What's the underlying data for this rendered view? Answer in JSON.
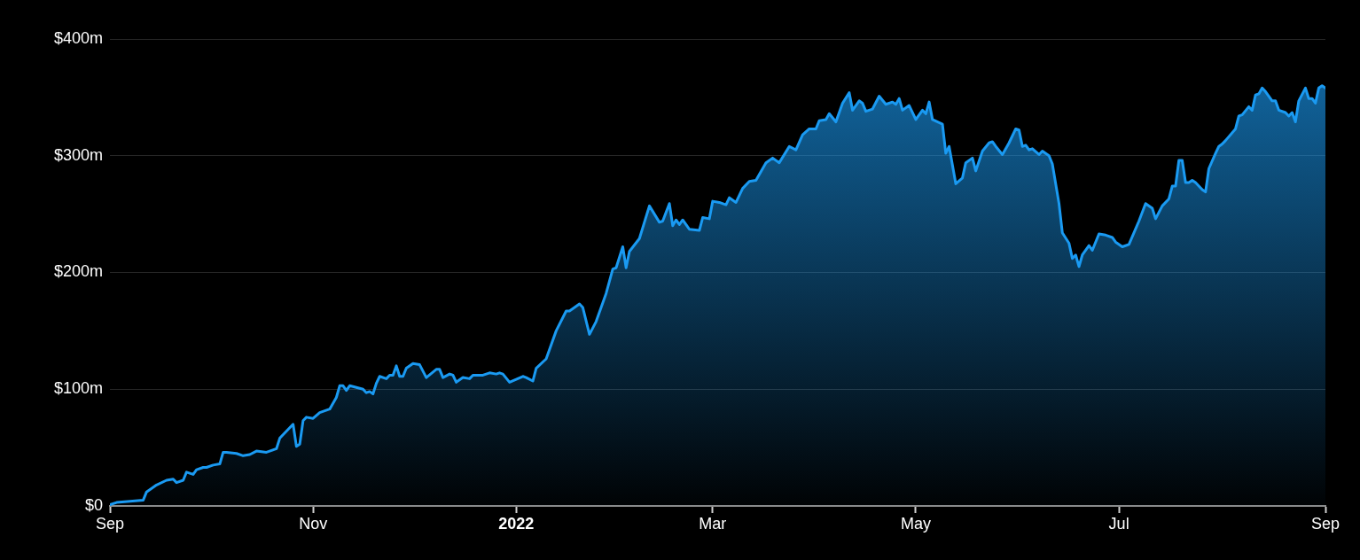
{
  "chart_data": {
    "type": "area",
    "x": [
      "2021-09-01",
      "2021-09-03",
      "2021-09-07",
      "2021-09-11",
      "2021-09-12",
      "2021-09-15",
      "2021-09-18",
      "2021-09-20",
      "2021-09-21",
      "2021-09-23",
      "2021-09-24",
      "2021-09-26",
      "2021-09-27",
      "2021-09-29",
      "2021-09-30",
      "2021-10-02",
      "2021-10-04",
      "2021-10-05",
      "2021-10-06",
      "2021-10-09",
      "2021-10-11",
      "2021-10-13",
      "2021-10-15",
      "2021-10-18",
      "2021-10-21",
      "2021-10-22",
      "2021-10-26",
      "2021-10-27",
      "2021-10-28",
      "2021-10-29",
      "2021-10-30",
      "2021-11-01",
      "2021-11-03",
      "2021-11-06",
      "2021-11-08",
      "2021-11-09",
      "2021-11-10",
      "2021-11-11",
      "2021-11-12",
      "2021-11-16",
      "2021-11-17",
      "2021-11-18",
      "2021-11-19",
      "2021-11-20",
      "2021-11-21",
      "2021-11-23",
      "2021-11-24",
      "2021-11-25",
      "2021-11-26",
      "2021-11-27",
      "2021-11-28",
      "2021-11-29",
      "2021-12-01",
      "2021-12-03",
      "2021-12-05",
      "2021-12-08",
      "2021-12-09",
      "2021-12-10",
      "2021-12-12",
      "2021-12-13",
      "2021-12-14",
      "2021-12-16",
      "2021-12-18",
      "2021-12-19",
      "2021-12-22",
      "2021-12-24",
      "2021-12-26",
      "2021-12-27",
      "2021-12-28",
      "2021-12-30",
      "2022-01-03",
      "2022-01-04",
      "2022-01-06",
      "2022-01-07",
      "2022-01-10",
      "2022-01-13",
      "2022-01-16",
      "2022-01-17",
      "2022-01-20",
      "2022-01-21",
      "2022-01-23",
      "2022-01-25",
      "2022-01-28",
      "2022-01-30",
      "2022-01-31",
      "2022-02-02",
      "2022-02-03",
      "2022-02-04",
      "2022-02-07",
      "2022-02-10",
      "2022-02-13",
      "2022-02-14",
      "2022-02-16",
      "2022-02-17",
      "2022-02-18",
      "2022-02-19",
      "2022-02-20",
      "2022-02-22",
      "2022-02-25",
      "2022-02-26",
      "2022-02-28",
      "2022-03-01",
      "2022-03-03",
      "2022-03-05",
      "2022-03-06",
      "2022-03-08",
      "2022-03-10",
      "2022-03-12",
      "2022-03-14",
      "2022-03-17",
      "2022-03-19",
      "2022-03-21",
      "2022-03-24",
      "2022-03-26",
      "2022-03-28",
      "2022-03-30",
      "2022-04-01",
      "2022-04-02",
      "2022-04-04",
      "2022-04-05",
      "2022-04-07",
      "2022-04-09",
      "2022-04-11",
      "2022-04-12",
      "2022-04-14",
      "2022-04-15",
      "2022-04-16",
      "2022-04-18",
      "2022-04-20",
      "2022-04-22",
      "2022-04-24",
      "2022-04-25",
      "2022-04-26",
      "2022-04-27",
      "2022-04-29",
      "2022-05-01",
      "2022-05-03",
      "2022-05-04",
      "2022-05-05",
      "2022-05-06",
      "2022-05-09",
      "2022-05-10",
      "2022-05-11",
      "2022-05-13",
      "2022-05-15",
      "2022-05-16",
      "2022-05-18",
      "2022-05-19",
      "2022-05-21",
      "2022-05-23",
      "2022-05-24",
      "2022-05-25",
      "2022-05-27",
      "2022-05-29",
      "2022-05-31",
      "2022-06-01",
      "2022-06-02",
      "2022-06-03",
      "2022-06-04",
      "2022-06-05",
      "2022-06-07",
      "2022-06-08",
      "2022-06-10",
      "2022-06-11",
      "2022-06-13",
      "2022-06-14",
      "2022-06-16",
      "2022-06-17",
      "2022-06-18",
      "2022-06-19",
      "2022-06-20",
      "2022-06-22",
      "2022-06-23",
      "2022-06-25",
      "2022-06-27",
      "2022-06-29",
      "2022-06-30",
      "2022-07-02",
      "2022-07-04",
      "2022-07-07",
      "2022-07-09",
      "2022-07-11",
      "2022-07-12",
      "2022-07-14",
      "2022-07-16",
      "2022-07-17",
      "2022-07-18",
      "2022-07-19",
      "2022-07-20",
      "2022-07-21",
      "2022-07-22",
      "2022-07-23",
      "2022-07-24",
      "2022-07-26",
      "2022-07-27",
      "2022-07-28",
      "2022-07-30",
      "2022-07-31",
      "2022-08-01",
      "2022-08-02",
      "2022-08-05",
      "2022-08-06",
      "2022-08-07",
      "2022-08-09",
      "2022-08-10",
      "2022-08-11",
      "2022-08-12",
      "2022-08-13",
      "2022-08-14",
      "2022-08-16",
      "2022-08-17",
      "2022-08-18",
      "2022-08-20",
      "2022-08-21",
      "2022-08-22",
      "2022-08-23",
      "2022-08-24",
      "2022-08-26",
      "2022-08-27",
      "2022-08-28",
      "2022-08-29",
      "2022-08-30",
      "2022-08-31",
      "2022-09-01"
    ],
    "series": [
      {
        "color": "#1a9af2",
        "values": [
          1,
          3,
          4,
          5,
          12,
          18,
          22,
          23,
          20,
          22,
          29,
          27,
          31,
          33,
          33,
          35,
          36,
          46,
          46,
          45,
          43,
          44,
          47,
          46,
          49,
          58,
          70,
          51,
          53,
          73,
          76,
          75,
          80,
          83,
          93,
          103,
          103,
          99,
          103,
          100,
          97,
          98,
          96,
          105,
          111,
          109,
          112,
          112,
          120,
          111,
          111,
          118,
          122,
          121,
          110,
          117,
          117,
          110,
          113,
          112,
          106,
          110,
          109,
          112,
          112,
          114,
          113,
          114,
          113,
          106,
          111,
          110,
          107,
          118,
          126,
          150,
          167,
          167,
          173,
          170,
          147,
          158,
          182,
          203,
          204,
          222,
          204,
          218,
          229,
          257,
          243,
          244,
          259,
          240,
          245,
          241,
          245,
          237,
          236,
          247,
          246,
          261,
          260,
          258,
          264,
          260,
          272,
          278,
          279,
          294,
          298,
          294,
          308,
          305,
          318,
          323,
          323,
          330,
          331,
          336,
          329,
          345,
          354,
          339,
          347,
          345,
          338,
          340,
          351,
          344,
          346,
          344,
          349,
          339,
          343,
          331,
          339,
          336,
          346,
          331,
          327,
          302,
          308,
          276,
          281,
          294,
          298,
          287,
          304,
          311,
          312,
          308,
          301,
          311,
          323,
          322,
          308,
          309,
          305,
          306,
          301,
          304,
          300,
          293,
          259,
          234,
          225,
          212,
          215,
          205,
          215,
          223,
          219,
          233,
          232,
          230,
          226,
          222,
          224,
          244,
          259,
          255,
          246,
          257,
          263,
          274,
          274,
          296,
          296,
          277,
          277,
          279,
          277,
          271,
          269,
          289,
          302,
          308,
          310,
          313,
          323,
          334,
          335,
          342,
          339,
          352,
          353,
          358,
          355,
          347,
          347,
          339,
          337,
          334,
          337,
          329,
          347,
          358,
          349,
          349,
          345,
          358,
          360,
          358
        ]
      }
    ],
    "xlim": [
      "2021-09-01",
      "2022-09-01"
    ],
    "xticks": [
      {
        "value": "2021-09-01",
        "label": "Sep"
      },
      {
        "value": "2021-11-01",
        "label": "Nov"
      },
      {
        "value": "2022-01-01",
        "label": "2022"
      },
      {
        "value": "2022-03-01",
        "label": "Mar"
      },
      {
        "value": "2022-05-01",
        "label": "May"
      },
      {
        "value": "2022-07-01",
        "label": "Jul"
      },
      {
        "value": "2022-09-01",
        "label": "Sep"
      }
    ],
    "ylim": [
      0,
      400
    ],
    "yticks": [
      {
        "value": 0,
        "label": "$0"
      },
      {
        "value": 100,
        "label": "$100m"
      },
      {
        "value": 200,
        "label": "$200m"
      },
      {
        "value": 300,
        "label": "$300m"
      },
      {
        "value": 400,
        "label": "$400m"
      }
    ],
    "grid": "y",
    "legend": false,
    "marker": "none",
    "line_style": "solid"
  }
}
